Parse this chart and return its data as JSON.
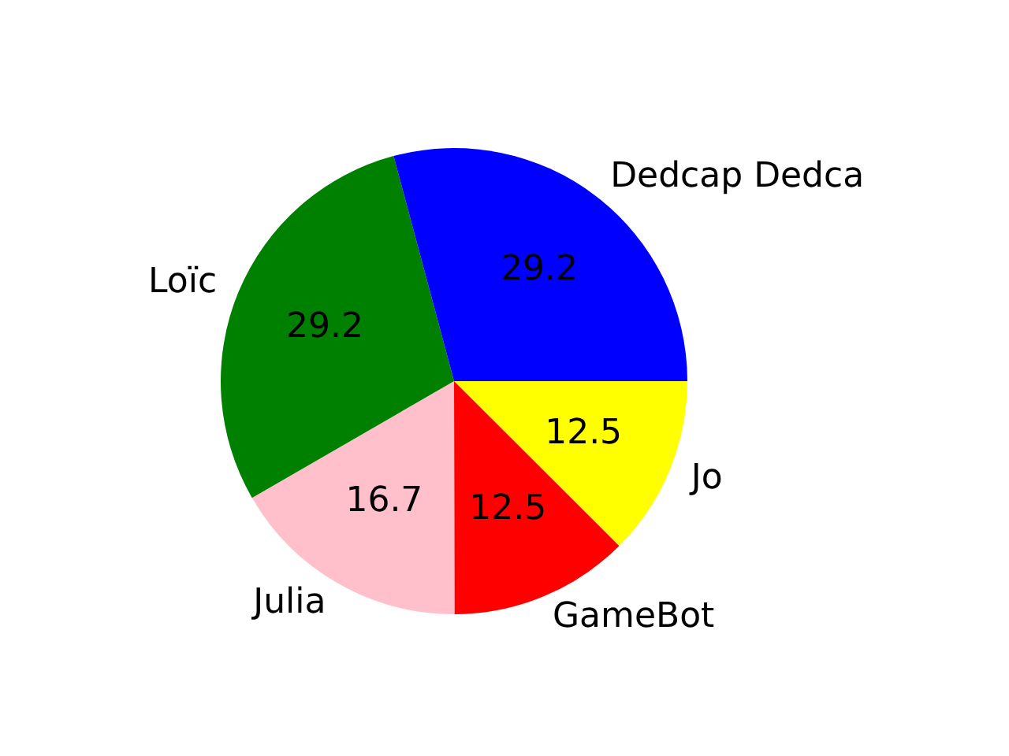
{
  "chart_data": {
    "type": "pie",
    "categories": [
      "Dedcap Dedca",
      "Loïc",
      "Julia",
      "GameBot",
      "Jo"
    ],
    "values": [
      29.2,
      29.2,
      16.7,
      12.5,
      12.5
    ],
    "colors": [
      "#0000ff",
      "#008000",
      "#ffc0cb",
      "#ff0000",
      "#ffff00"
    ],
    "data_labels": true,
    "legend": false
  }
}
